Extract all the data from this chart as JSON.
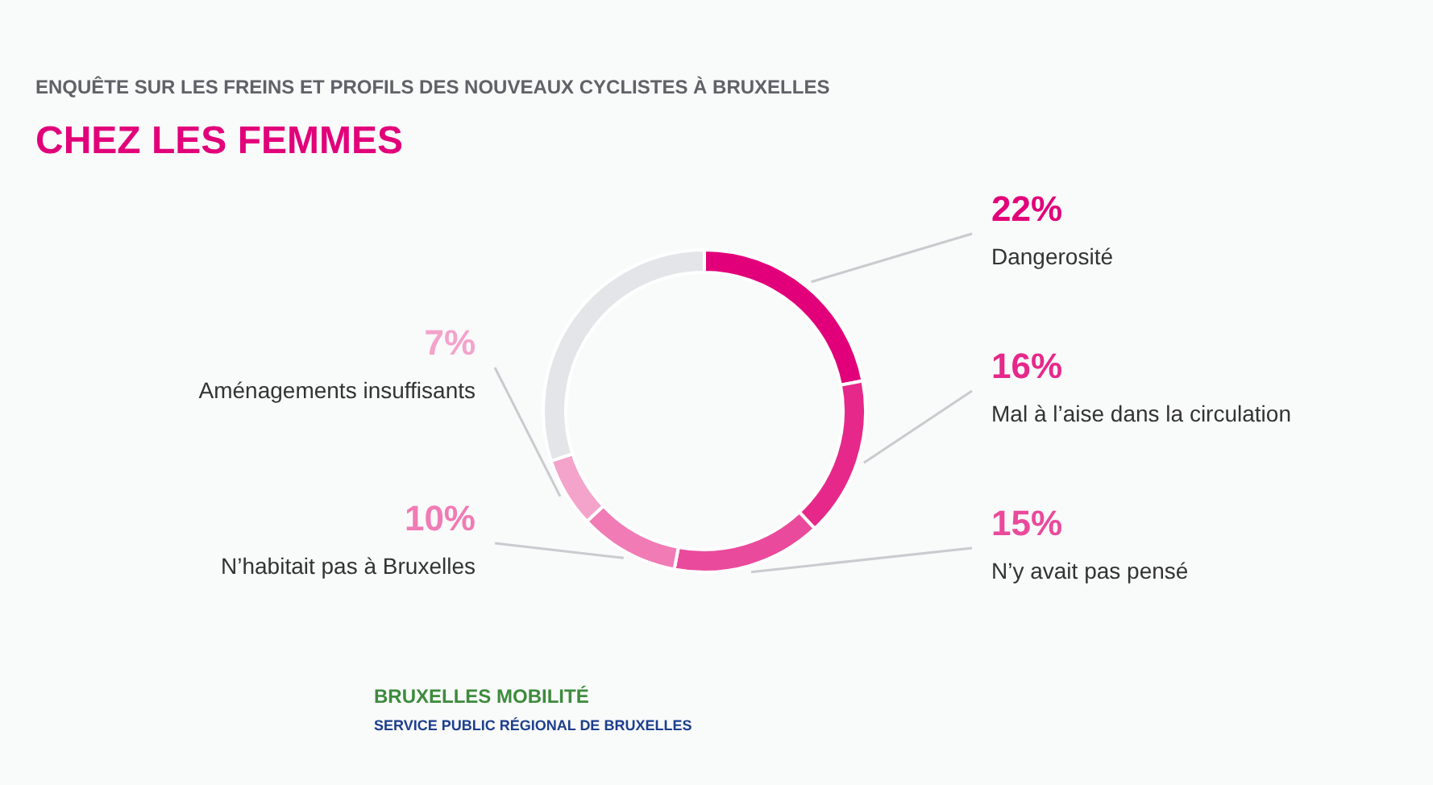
{
  "chart_data": {
    "type": "donut",
    "title": "ENQUÊTE SUR LES FREINS ET PROFILS DES NOUVEAUX CYCLISTES À BRUXELLES",
    "subtitle": "CHEZ LES FEMMES",
    "categories": [
      "Dangerosité",
      "Mal à l’aise dans la circulation",
      "N’y avait pas pensé",
      "N’habitait pas à Bruxelles",
      "Aménagements insuffisants",
      null
    ],
    "values": [
      22,
      16,
      15,
      10,
      7,
      30
    ],
    "value_labels": [
      "22%",
      "16%",
      "15%",
      "10%",
      "7%",
      null
    ],
    "colors": [
      "#e2007a",
      "#e6288a",
      "#ea4a9c",
      "#f07bb5",
      "#f4a3cb",
      "#e4e5e8"
    ],
    "annotations": [
      "BRUXELLES MOBILITÉ",
      "SERVICE PUBLIC RÉGIONAL DE BRUXELLES"
    ]
  }
}
